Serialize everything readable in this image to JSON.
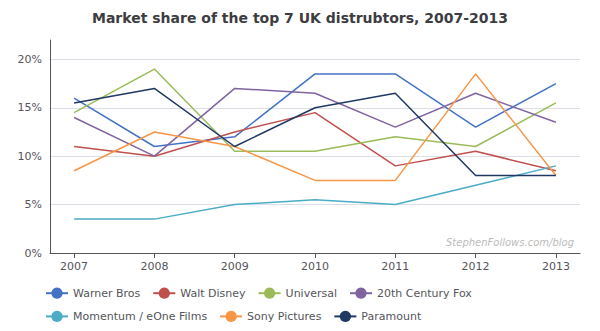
{
  "chart_data": {
    "type": "line",
    "title": "Market share of the top 7 UK distrubtors, 2007-2013",
    "x": [
      2007,
      2008,
      2009,
      2010,
      2011,
      2012,
      2013
    ],
    "xlim": [
      2006.7,
      2013.3
    ],
    "xticks": [
      2007,
      2008,
      2009,
      2010,
      2011,
      2012,
      2013
    ],
    "series": [
      {
        "name": "Warner Bros",
        "color": "#4472C4",
        "values": [
          16,
          11,
          12,
          18.5,
          18.5,
          13,
          17.5
        ]
      },
      {
        "name": "Walt Disney",
        "color": "#C0504D",
        "values": [
          11,
          10,
          12.5,
          14.5,
          9,
          10.5,
          8.5
        ]
      },
      {
        "name": "Universal",
        "color": "#9BBB59",
        "values": [
          14.5,
          19,
          10.5,
          10.5,
          12,
          11,
          15.5
        ]
      },
      {
        "name": "20th Century Fox",
        "color": "#8064A2",
        "values": [
          14,
          10,
          17,
          16.5,
          13,
          16.5,
          13.5
        ]
      },
      {
        "name": "Momentum / eOne Films",
        "color": "#4BACC6",
        "values": [
          3.5,
          3.5,
          5,
          5.5,
          5,
          7,
          9
        ]
      },
      {
        "name": "Sony Pictures",
        "color": "#F79646",
        "values": [
          8.5,
          12.5,
          11,
          7.5,
          7.5,
          18.5,
          8
        ]
      },
      {
        "name": "Paramount",
        "color": "#1F3864",
        "values": [
          15.5,
          17,
          11,
          15,
          16.5,
          8,
          8
        ]
      }
    ],
    "ylim": [
      0,
      22
    ],
    "yticks": [
      {
        "value": 0,
        "label": "0%"
      },
      {
        "value": 5,
        "label": "5%"
      },
      {
        "value": 10,
        "label": "10%"
      },
      {
        "value": 15,
        "label": "15%"
      },
      {
        "value": 20,
        "label": "20%"
      }
    ],
    "grid": true,
    "legend": "bottom",
    "annotations": [
      "StephenFollows.com/blog"
    ]
  }
}
